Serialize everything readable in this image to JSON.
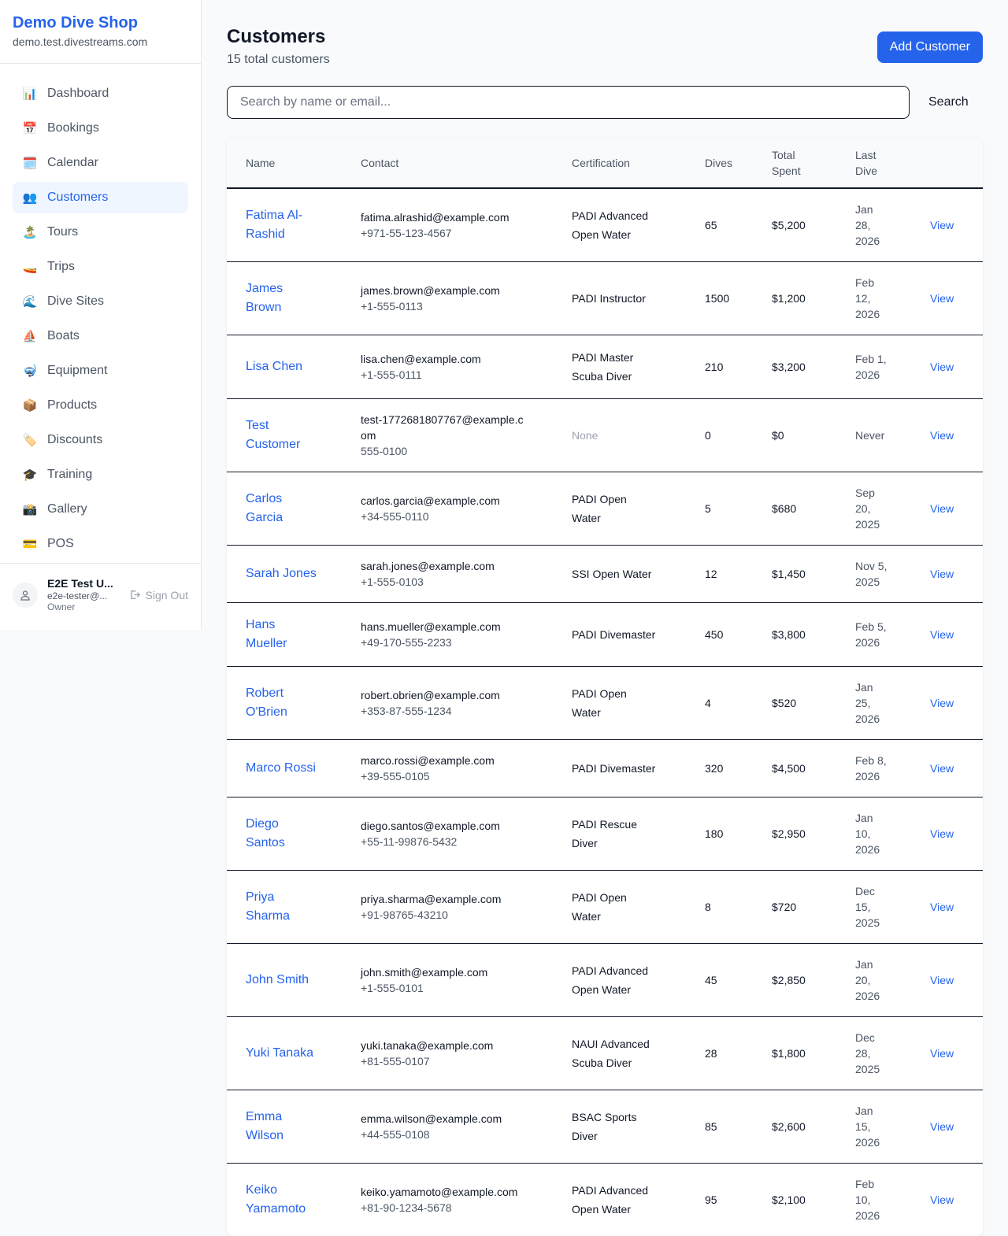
{
  "brand": {
    "name": "Demo Dive Shop",
    "domain": "demo.test.divestreams.com"
  },
  "nav": [
    {
      "label": "Dashboard",
      "icon": "📊",
      "active": false
    },
    {
      "label": "Bookings",
      "icon": "📅",
      "active": false
    },
    {
      "label": "Calendar",
      "icon": "🗓️",
      "active": false
    },
    {
      "label": "Customers",
      "icon": "👥",
      "active": true
    },
    {
      "label": "Tours",
      "icon": "🏝️",
      "active": false
    },
    {
      "label": "Trips",
      "icon": "🚤",
      "active": false
    },
    {
      "label": "Dive Sites",
      "icon": "🌊",
      "active": false
    },
    {
      "label": "Boats",
      "icon": "⛵",
      "active": false
    },
    {
      "label": "Equipment",
      "icon": "🤿",
      "active": false
    },
    {
      "label": "Products",
      "icon": "📦",
      "active": false
    },
    {
      "label": "Discounts",
      "icon": "🏷️",
      "active": false
    },
    {
      "label": "Training",
      "icon": "🎓",
      "active": false
    },
    {
      "label": "Gallery",
      "icon": "📸",
      "active": false
    },
    {
      "label": "POS",
      "icon": "💳",
      "active": false
    }
  ],
  "user": {
    "name": "E2E Test U...",
    "email": "e2e-tester@...",
    "role": "Owner",
    "sign_out": "Sign Out"
  },
  "page": {
    "title": "Customers",
    "subtitle": "15 total customers",
    "add_button": "Add Customer"
  },
  "search": {
    "placeholder": "Search by name or email...",
    "value": "",
    "button": "Search"
  },
  "table": {
    "columns": [
      "Name",
      "Contact",
      "Certification",
      "Dives",
      "Total Spent",
      "Last Dive",
      ""
    ],
    "action_label": "View",
    "rows": [
      {
        "name": "Fatima Al-Rashid",
        "email": "fatima.alrashid@example.com",
        "phone": "+971-55-123-4567",
        "cert": "PADI Advanced Open Water",
        "dives": "65",
        "spent": "$5,200",
        "last": "Jan 28, 2026"
      },
      {
        "name": "James Brown",
        "email": "james.brown@example.com",
        "phone": "+1-555-0113",
        "cert": "PADI Instructor",
        "dives": "1500",
        "spent": "$1,200",
        "last": "Feb 12, 2026"
      },
      {
        "name": "Lisa Chen",
        "email": "lisa.chen@example.com",
        "phone": "+1-555-0111",
        "cert": "PADI Master Scuba Diver",
        "dives": "210",
        "spent": "$3,200",
        "last": "Feb 1, 2026"
      },
      {
        "name": "Test Customer",
        "email": "test-1772681807767@example.com",
        "phone": "555-0100",
        "cert": "None",
        "dives": "0",
        "spent": "$0",
        "last": "Never"
      },
      {
        "name": "Carlos Garcia",
        "email": "carlos.garcia@example.com",
        "phone": "+34-555-0110",
        "cert": "PADI Open Water",
        "dives": "5",
        "spent": "$680",
        "last": "Sep 20, 2025"
      },
      {
        "name": "Sarah Jones",
        "email": "sarah.jones@example.com",
        "phone": "+1-555-0103",
        "cert": "SSI Open Water",
        "dives": "12",
        "spent": "$1,450",
        "last": "Nov 5, 2025"
      },
      {
        "name": "Hans Mueller",
        "email": "hans.mueller@example.com",
        "phone": "+49-170-555-2233",
        "cert": "PADI Divemaster",
        "dives": "450",
        "spent": "$3,800",
        "last": "Feb 5, 2026"
      },
      {
        "name": "Robert O'Brien",
        "email": "robert.obrien@example.com",
        "phone": "+353-87-555-1234",
        "cert": "PADI Open Water",
        "dives": "4",
        "spent": "$520",
        "last": "Jan 25, 2026"
      },
      {
        "name": "Marco Rossi",
        "email": "marco.rossi@example.com",
        "phone": "+39-555-0105",
        "cert": "PADI Divemaster",
        "dives": "320",
        "spent": "$4,500",
        "last": "Feb 8, 2026"
      },
      {
        "name": "Diego Santos",
        "email": "diego.santos@example.com",
        "phone": "+55-11-99876-5432",
        "cert": "PADI Rescue Diver",
        "dives": "180",
        "spent": "$2,950",
        "last": "Jan 10, 2026"
      },
      {
        "name": "Priya Sharma",
        "email": "priya.sharma@example.com",
        "phone": "+91-98765-43210",
        "cert": "PADI Open Water",
        "dives": "8",
        "spent": "$720",
        "last": "Dec 15, 2025"
      },
      {
        "name": "John Smith",
        "email": "john.smith@example.com",
        "phone": "+1-555-0101",
        "cert": "PADI Advanced Open Water",
        "dives": "45",
        "spent": "$2,850",
        "last": "Jan 20, 2026"
      },
      {
        "name": "Yuki Tanaka",
        "email": "yuki.tanaka@example.com",
        "phone": "+81-555-0107",
        "cert": "NAUI Advanced Scuba Diver",
        "dives": "28",
        "spent": "$1,800",
        "last": "Dec 28, 2025"
      },
      {
        "name": "Emma Wilson",
        "email": "emma.wilson@example.com",
        "phone": "+44-555-0108",
        "cert": "BSAC Sports Diver",
        "dives": "85",
        "spent": "$2,600",
        "last": "Jan 15, 2026"
      },
      {
        "name": "Keiko Yamamoto",
        "email": "keiko.yamamoto@example.com",
        "phone": "+81-90-1234-5678",
        "cert": "PADI Advanced Open Water",
        "dives": "95",
        "spent": "$2,100",
        "last": "Feb 10, 2026"
      }
    ]
  }
}
